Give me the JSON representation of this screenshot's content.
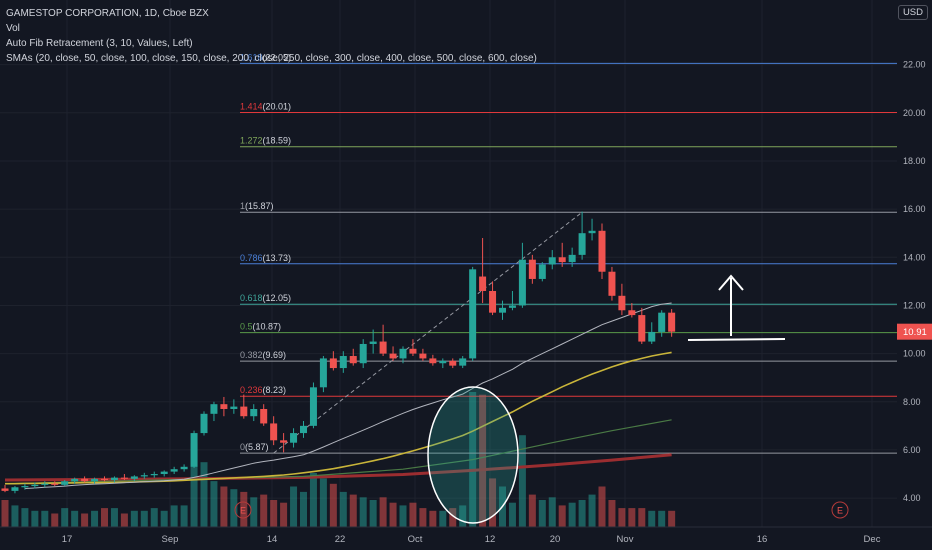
{
  "header": {
    "title": "GAMESTOP CORPORATION, 1D, Cboe BZX",
    "indicators": [
      "Vol",
      "Auto Fib Retracement (3, 10, Values, Left)",
      "SMAs (20, close, 50, close, 100, close, 150, close, 200, close, 250, close, 300, close, 400, close, 500, close, 600, close)"
    ],
    "currency": "USD"
  },
  "colors": {
    "background": "#131722",
    "up": "#26a69a",
    "down": "#ef5350",
    "grid": "#1e222d",
    "sma20": "#b2b5be",
    "sma50": "#c9b53a",
    "sma100": "#4a7a45",
    "sma200": "#9b2d30"
  },
  "chart_data": {
    "type": "candlestick",
    "title": "GAMESTOP CORPORATION, 1D, Cboe BZX",
    "ylim": [
      2.8,
      24.6
    ],
    "y_ticks": [
      "4.00",
      "6.00",
      "8.00",
      "10.00",
      "12.00",
      "14.00",
      "16.00",
      "18.00",
      "20.00",
      "22.00"
    ],
    "x_ticks": [
      "17",
      "Sep",
      "14",
      "22",
      "Oct",
      "12",
      "20",
      "Nov",
      "16",
      "Dec"
    ],
    "last_price": "10.91",
    "fib_levels": [
      {
        "ratio": "1.618",
        "value": "22.05",
        "price": 22.05,
        "color": "#4a7fd6"
      },
      {
        "ratio": "1.414",
        "value": "20.01",
        "price": 20.01,
        "color": "#e0383b"
      },
      {
        "ratio": "1.272",
        "value": "18.59",
        "price": 18.59,
        "color": "#7fa65a"
      },
      {
        "ratio": "1",
        "value": "15.87",
        "price": 15.87,
        "color": "#9598a1"
      },
      {
        "ratio": "0.786",
        "value": "13.73",
        "price": 13.73,
        "color": "#4a7fd6"
      },
      {
        "ratio": "0.618",
        "value": "12.05",
        "price": 12.05,
        "color": "#3fa69a"
      },
      {
        "ratio": "0.5",
        "value": "10.87",
        "price": 10.87,
        "color": "#5a9a4a"
      },
      {
        "ratio": "0.382",
        "value": "9.69",
        "price": 9.69,
        "color": "#9598a1"
      },
      {
        "ratio": "0.236",
        "value": "8.23",
        "price": 8.23,
        "color": "#e0383b"
      },
      {
        "ratio": "0",
        "value": "5.87",
        "price": 5.87,
        "color": "#9598a1"
      }
    ],
    "candles": [
      {
        "o": 4.4,
        "h": 4.55,
        "l": 4.25,
        "c": 4.3
      },
      {
        "o": 4.3,
        "h": 4.5,
        "l": 4.2,
        "c": 4.45
      },
      {
        "o": 4.45,
        "h": 4.6,
        "l": 4.35,
        "c": 4.5
      },
      {
        "o": 4.5,
        "h": 4.65,
        "l": 4.4,
        "c": 4.55
      },
      {
        "o": 4.55,
        "h": 4.7,
        "l": 4.45,
        "c": 4.6
      },
      {
        "o": 4.6,
        "h": 4.7,
        "l": 4.5,
        "c": 4.55
      },
      {
        "o": 4.55,
        "h": 4.75,
        "l": 4.5,
        "c": 4.7
      },
      {
        "o": 4.7,
        "h": 4.85,
        "l": 4.6,
        "c": 4.8
      },
      {
        "o": 4.8,
        "h": 4.9,
        "l": 4.65,
        "c": 4.7
      },
      {
        "o": 4.7,
        "h": 4.85,
        "l": 4.6,
        "c": 4.8
      },
      {
        "o": 4.8,
        "h": 4.9,
        "l": 4.7,
        "c": 4.75
      },
      {
        "o": 4.75,
        "h": 4.9,
        "l": 4.65,
        "c": 4.85
      },
      {
        "o": 4.85,
        "h": 5.0,
        "l": 4.75,
        "c": 4.8
      },
      {
        "o": 4.8,
        "h": 4.95,
        "l": 4.7,
        "c": 4.9
      },
      {
        "o": 4.9,
        "h": 5.05,
        "l": 4.8,
        "c": 4.95
      },
      {
        "o": 4.95,
        "h": 5.1,
        "l": 4.85,
        "c": 5.0
      },
      {
        "o": 5.0,
        "h": 5.15,
        "l": 4.9,
        "c": 5.1
      },
      {
        "o": 5.1,
        "h": 5.3,
        "l": 5.0,
        "c": 5.2
      },
      {
        "o": 5.2,
        "h": 5.4,
        "l": 5.1,
        "c": 5.3
      },
      {
        "o": 5.3,
        "h": 6.8,
        "l": 5.25,
        "c": 6.7
      },
      {
        "o": 6.7,
        "h": 7.6,
        "l": 6.6,
        "c": 7.5
      },
      {
        "o": 7.5,
        "h": 8.0,
        "l": 7.2,
        "c": 7.9
      },
      {
        "o": 7.9,
        "h": 8.2,
        "l": 7.4,
        "c": 7.7
      },
      {
        "o": 7.7,
        "h": 8.1,
        "l": 7.5,
        "c": 7.8
      },
      {
        "o": 7.8,
        "h": 8.3,
        "l": 7.3,
        "c": 7.4
      },
      {
        "o": 7.4,
        "h": 7.9,
        "l": 7.2,
        "c": 7.7
      },
      {
        "o": 7.7,
        "h": 7.9,
        "l": 7.0,
        "c": 7.1
      },
      {
        "o": 7.1,
        "h": 7.4,
        "l": 6.2,
        "c": 6.4
      },
      {
        "o": 6.4,
        "h": 6.7,
        "l": 5.9,
        "c": 6.3
      },
      {
        "o": 6.3,
        "h": 6.9,
        "l": 6.1,
        "c": 6.7
      },
      {
        "o": 6.7,
        "h": 7.2,
        "l": 6.5,
        "c": 7.0
      },
      {
        "o": 7.0,
        "h": 8.8,
        "l": 6.9,
        "c": 8.6
      },
      {
        "o": 8.6,
        "h": 9.9,
        "l": 8.4,
        "c": 9.8
      },
      {
        "o": 9.8,
        "h": 10.1,
        "l": 9.3,
        "c": 9.4
      },
      {
        "o": 9.4,
        "h": 10.1,
        "l": 9.2,
        "c": 9.9
      },
      {
        "o": 9.9,
        "h": 10.2,
        "l": 9.5,
        "c": 9.6
      },
      {
        "o": 9.6,
        "h": 10.6,
        "l": 9.4,
        "c": 10.4
      },
      {
        "o": 10.4,
        "h": 11.0,
        "l": 10.0,
        "c": 10.5
      },
      {
        "o": 10.5,
        "h": 11.2,
        "l": 9.9,
        "c": 10.0
      },
      {
        "o": 10.0,
        "h": 10.3,
        "l": 9.7,
        "c": 9.8
      },
      {
        "o": 9.8,
        "h": 10.3,
        "l": 9.6,
        "c": 10.2
      },
      {
        "o": 10.2,
        "h": 10.6,
        "l": 9.9,
        "c": 10.0
      },
      {
        "o": 10.0,
        "h": 10.2,
        "l": 9.7,
        "c": 9.8
      },
      {
        "o": 9.8,
        "h": 9.95,
        "l": 9.5,
        "c": 9.6
      },
      {
        "o": 9.6,
        "h": 9.8,
        "l": 9.4,
        "c": 9.7
      },
      {
        "o": 9.7,
        "h": 9.8,
        "l": 9.4,
        "c": 9.5
      },
      {
        "o": 9.5,
        "h": 9.9,
        "l": 9.4,
        "c": 9.8
      },
      {
        "o": 9.8,
        "h": 13.6,
        "l": 9.7,
        "c": 13.5
      },
      {
        "o": 13.2,
        "h": 14.8,
        "l": 12.1,
        "c": 12.6
      },
      {
        "o": 12.6,
        "h": 13.0,
        "l": 11.6,
        "c": 11.7
      },
      {
        "o": 11.7,
        "h": 12.2,
        "l": 11.4,
        "c": 11.9
      },
      {
        "o": 11.9,
        "h": 12.6,
        "l": 11.8,
        "c": 12.0
      },
      {
        "o": 12.0,
        "h": 14.6,
        "l": 11.9,
        "c": 13.9
      },
      {
        "o": 13.9,
        "h": 14.1,
        "l": 12.9,
        "c": 13.1
      },
      {
        "o": 13.1,
        "h": 13.8,
        "l": 13.0,
        "c": 13.7
      },
      {
        "o": 13.7,
        "h": 14.3,
        "l": 13.5,
        "c": 14.0
      },
      {
        "o": 14.0,
        "h": 14.6,
        "l": 13.6,
        "c": 13.8
      },
      {
        "o": 13.8,
        "h": 14.4,
        "l": 13.6,
        "c": 14.1
      },
      {
        "o": 14.1,
        "h": 15.9,
        "l": 13.9,
        "c": 15.0
      },
      {
        "o": 15.0,
        "h": 15.6,
        "l": 14.7,
        "c": 15.1
      },
      {
        "o": 15.1,
        "h": 15.4,
        "l": 13.1,
        "c": 13.4
      },
      {
        "o": 13.4,
        "h": 13.6,
        "l": 12.2,
        "c": 12.4
      },
      {
        "o": 12.4,
        "h": 12.9,
        "l": 11.6,
        "c": 11.8
      },
      {
        "o": 11.8,
        "h": 12.1,
        "l": 11.5,
        "c": 11.6
      },
      {
        "o": 11.6,
        "h": 11.9,
        "l": 10.4,
        "c": 10.5
      },
      {
        "o": 10.5,
        "h": 11.3,
        "l": 10.4,
        "c": 10.9
      },
      {
        "o": 10.9,
        "h": 11.8,
        "l": 10.7,
        "c": 11.7
      },
      {
        "o": 11.7,
        "h": 11.85,
        "l": 10.7,
        "c": 10.91
      }
    ],
    "volume": [
      0.2,
      0.16,
      0.14,
      0.12,
      0.12,
      0.1,
      0.14,
      0.12,
      0.1,
      0.12,
      0.14,
      0.14,
      0.1,
      0.12,
      0.12,
      0.14,
      0.12,
      0.16,
      0.16,
      0.62,
      0.48,
      0.34,
      0.3,
      0.28,
      0.26,
      0.22,
      0.24,
      0.2,
      0.18,
      0.3,
      0.26,
      0.4,
      0.36,
      0.32,
      0.26,
      0.24,
      0.22,
      0.2,
      0.22,
      0.18,
      0.16,
      0.18,
      0.14,
      0.12,
      0.12,
      0.14,
      0.16,
      1.0,
      0.98,
      0.36,
      0.3,
      0.18,
      0.68,
      0.24,
      0.2,
      0.22,
      0.16,
      0.18,
      0.2,
      0.24,
      0.3,
      0.2,
      0.14,
      0.14,
      0.14,
      0.12,
      0.12,
      0.12
    ],
    "sma20": [
      null,
      null,
      4.4,
      4.42,
      4.45,
      4.47,
      4.5,
      4.53,
      4.56,
      4.58,
      4.6,
      4.62,
      4.64,
      4.66,
      4.68,
      4.7,
      4.72,
      4.75,
      4.78,
      4.86,
      4.95,
      5.05,
      5.15,
      5.25,
      5.35,
      5.45,
      5.52,
      5.58,
      5.65,
      5.72,
      5.8,
      5.95,
      6.12,
      6.3,
      6.48,
      6.65,
      6.82,
      7.0,
      7.18,
      7.35,
      7.52,
      7.68,
      7.82,
      7.95,
      8.08,
      8.2,
      8.32,
      8.55,
      8.78,
      8.95,
      9.15,
      9.35,
      9.6,
      9.8,
      10.0,
      10.2,
      10.4,
      10.6,
      10.8,
      11.0,
      11.2,
      11.35,
      11.5,
      11.65,
      11.8,
      11.95,
      12.05,
      12.1
    ],
    "sma50": [
      4.6,
      4.6,
      4.61,
      4.61,
      4.62,
      4.62,
      4.63,
      4.63,
      4.64,
      4.64,
      4.65,
      4.65,
      4.66,
      4.67,
      4.68,
      4.69,
      4.7,
      4.72,
      4.74,
      4.76,
      4.78,
      4.8,
      4.82,
      4.84,
      4.86,
      4.88,
      4.9,
      4.93,
      4.96,
      5.0,
      5.05,
      5.1,
      5.16,
      5.22,
      5.3,
      5.38,
      5.46,
      5.55,
      5.64,
      5.74,
      5.85,
      5.96,
      6.08,
      6.2,
      6.33,
      6.46,
      6.6,
      6.78,
      6.98,
      7.18,
      7.38,
      7.58,
      7.8,
      8.02,
      8.22,
      8.42,
      8.62,
      8.8,
      8.98,
      9.15,
      9.3,
      9.45,
      9.58,
      9.7,
      9.8,
      9.9,
      9.98,
      10.05
    ],
    "sma100": [
      4.6,
      null,
      null,
      null,
      null,
      null,
      null,
      null,
      null,
      null,
      null,
      null,
      null,
      null,
      null,
      null,
      null,
      null,
      null,
      null,
      null,
      null,
      null,
      null,
      null,
      null,
      null,
      null,
      null,
      null,
      4.9,
      null,
      null,
      null,
      null,
      null,
      null,
      null,
      null,
      null,
      5.2,
      null,
      null,
      null,
      null,
      null,
      null,
      5.6,
      null,
      null,
      null,
      null,
      null,
      null,
      null,
      6.3,
      null,
      null,
      null,
      null,
      null,
      6.8,
      null,
      null,
      null,
      null,
      null,
      7.25
    ],
    "sma200": [
      4.75,
      null,
      null,
      null,
      null,
      null,
      null,
      null,
      null,
      null,
      null,
      null,
      null,
      null,
      null,
      null,
      null,
      null,
      null,
      4.8,
      null,
      null,
      null,
      null,
      null,
      null,
      null,
      null,
      null,
      null,
      4.86,
      null,
      null,
      null,
      null,
      null,
      null,
      null,
      null,
      null,
      4.98,
      null,
      null,
      null,
      null,
      null,
      null,
      5.15,
      null,
      null,
      null,
      null,
      null,
      null,
      null,
      5.38,
      null,
      null,
      null,
      null,
      null,
      5.58,
      null,
      null,
      null,
      null,
      null,
      5.8
    ],
    "annotations": [
      "E",
      "E"
    ]
  }
}
